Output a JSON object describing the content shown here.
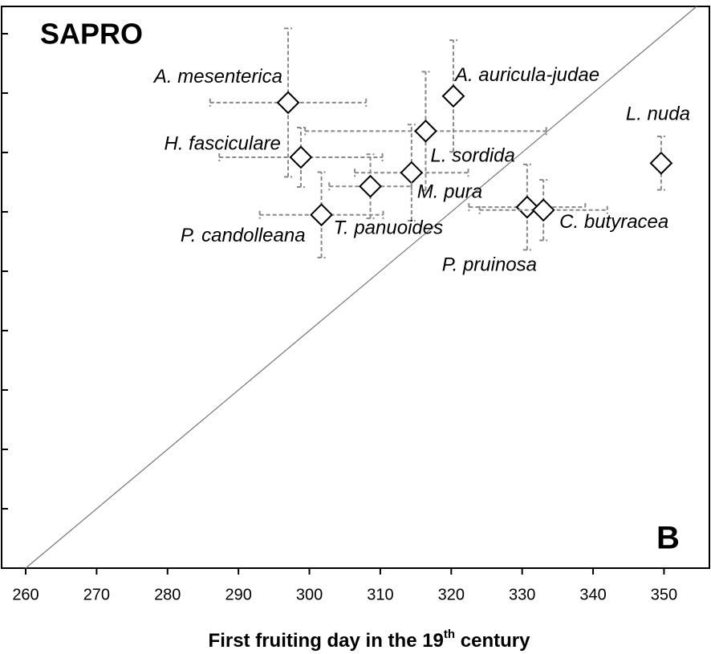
{
  "chart_data": {
    "type": "scatter",
    "title": "SAPRO",
    "panel": "B",
    "xlabel_parts": [
      "First fruiting day in the 19",
      "th",
      " century"
    ],
    "xlim": [
      260,
      356.4
    ],
    "ylim": [
      260,
      354.6
    ],
    "xticks": [
      260,
      270,
      280,
      290,
      300,
      310,
      320,
      330,
      340,
      350
    ],
    "yticks": [
      260,
      270,
      280,
      290,
      300,
      310,
      320,
      330,
      340,
      350
    ],
    "diagonal": true,
    "marker_color": "#ffffff",
    "error_color": "#888888",
    "points": [
      {
        "name": "A. mesenterica",
        "x": 297.0,
        "y": 338.4,
        "xerr": 11,
        "yerr": 12.5
      },
      {
        "name": "A. auricula-judae",
        "x": 320.3,
        "y": 339.5,
        "yerr": 9.4
      },
      {
        "name": "L. sordida",
        "x": 316.4,
        "y": 333.6,
        "xerr": 17,
        "yerr": 10
      },
      {
        "name": "H. fasciculare",
        "x": 298.8,
        "y": 329.2,
        "xerr": 11.5,
        "yerr": 5
      },
      {
        "name": "L. nuda",
        "x": 349.6,
        "y": 328.2,
        "yerr": 4.5
      },
      {
        "name": "M. pura",
        "x": 314.4,
        "y": 326.6,
        "xerr": 8,
        "yerr": 8.1
      },
      {
        "name": "T. panuoides",
        "x": 308.6,
        "y": 324.3,
        "xerr": 5.8,
        "yerr": 5.4
      },
      {
        "name": "P. candolleana",
        "x": 301.7,
        "y": 319.5,
        "xerr": 8.7,
        "yerr": 7.2
      },
      {
        "name": "P. pruinosa",
        "x": 330.7,
        "y": 320.8,
        "xerr": 8.2,
        "yerr": 7.2
      },
      {
        "name": "C. butyracea",
        "x": 333.0,
        "y": 320.3,
        "xerr": 9,
        "yerr": 5.1
      }
    ]
  }
}
